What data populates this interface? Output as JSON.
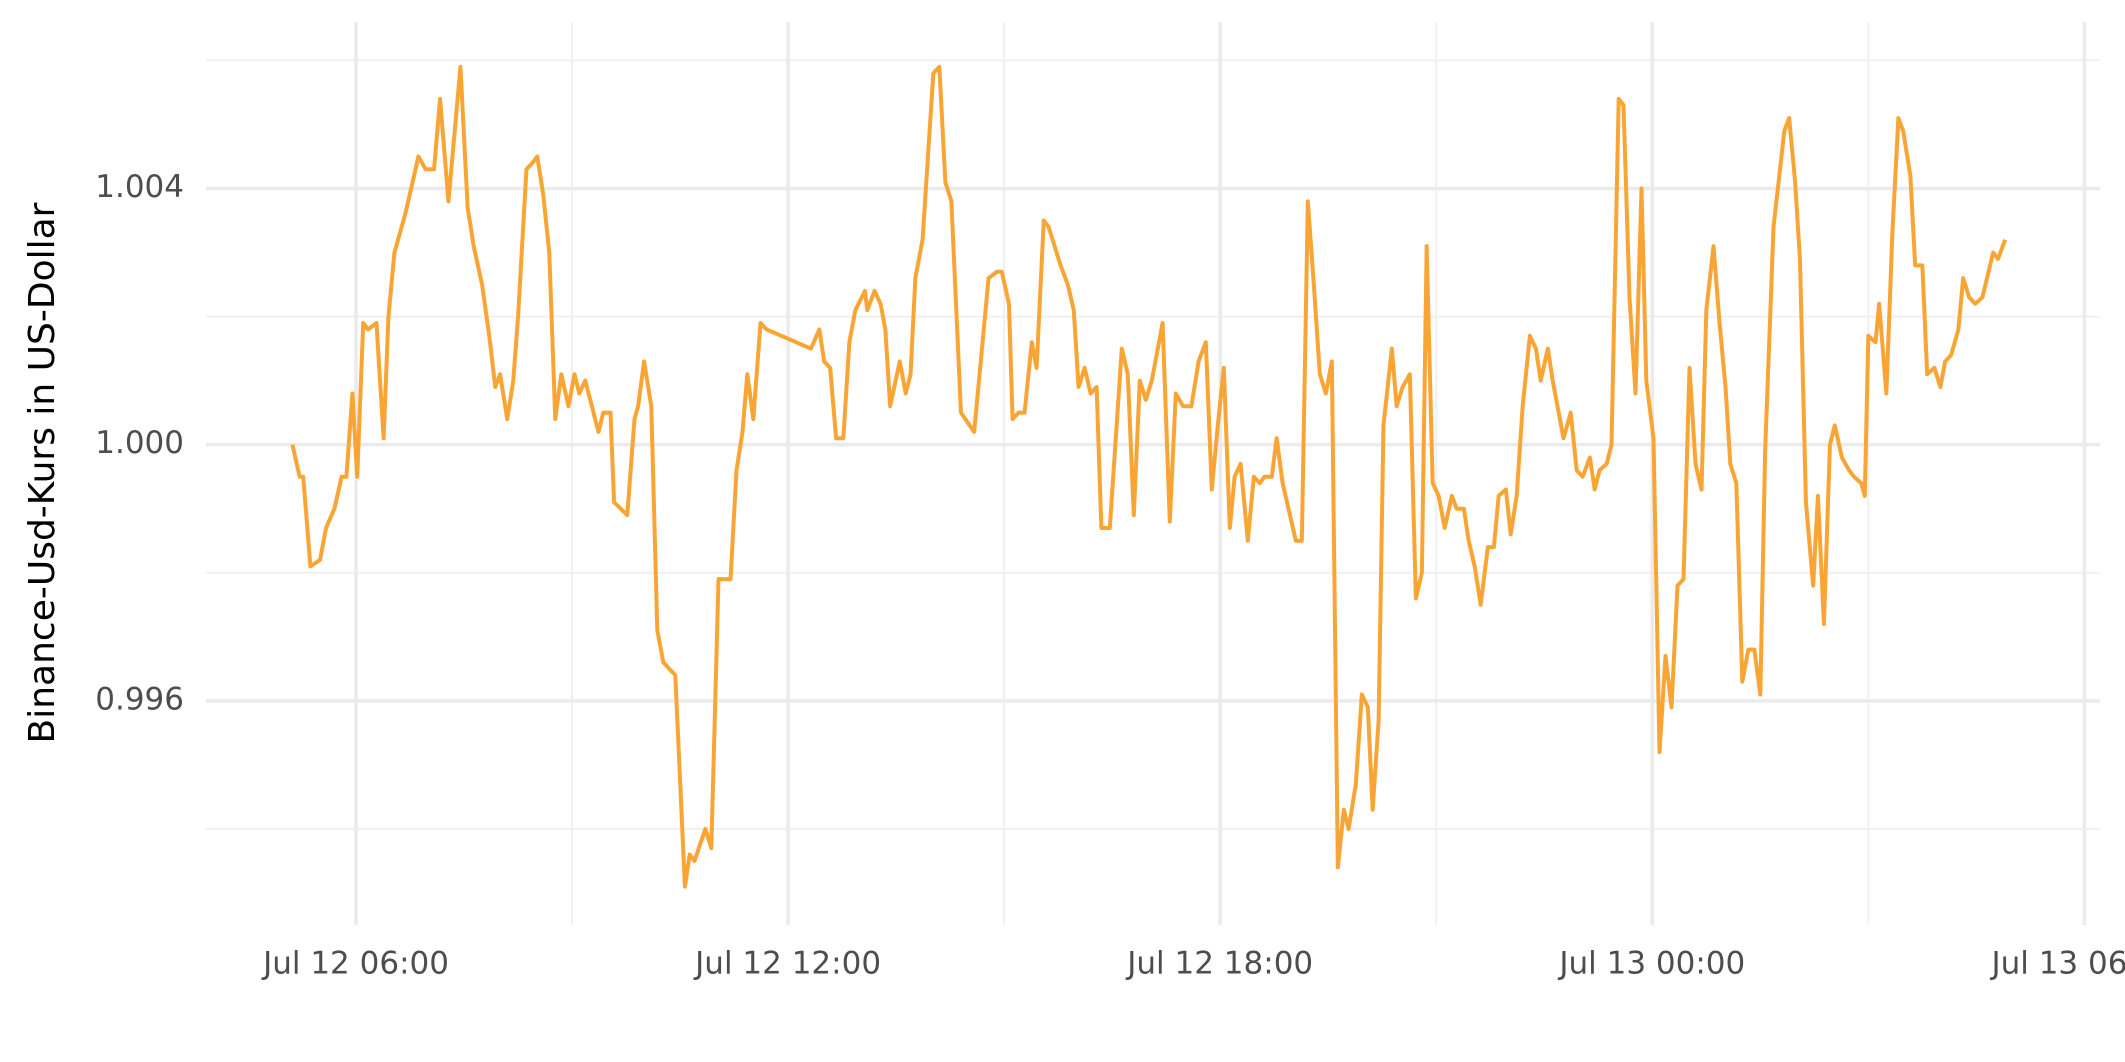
{
  "chart_data": {
    "type": "line",
    "y_label": "Binance-Usd-Kurs in US-Dollar",
    "xlim": [
      "Jul 12 03:55",
      "Jul 13 06:13"
    ],
    "xticks": [
      "Jul 12 06:00",
      "Jul 12 12:00",
      "Jul 12 18:00",
      "Jul 13 00:00",
      "Jul 13 06:00"
    ],
    "x_minor_ticks": [
      "Jul 12 09:00",
      "Jul 12 15:00",
      "Jul 12 21:00",
      "Jul 13 03:00"
    ],
    "ylim": [
      0.9925,
      1.0066
    ],
    "yticks": [
      {
        "value": 0.996,
        "label": "0.996"
      },
      {
        "value": 1.0,
        "label": "1.000"
      },
      {
        "value": 1.004,
        "label": "1.004"
      }
    ],
    "y_minor_ticks": [
      0.994,
      0.998,
      1.002,
      1.006
    ],
    "grid": true,
    "series": [
      {
        "color": "#f9a535",
        "x": [
          "Jul 12 05:07",
          "Jul 12 05:13",
          "Jul 12 05:16",
          "Jul 12 05:22",
          "Jul 12 05:30",
          "Jul 12 05:35",
          "Jul 12 05:42",
          "Jul 12 05:48",
          "Jul 12 05:52",
          "Jul 12 05:57",
          "Jul 12 06:01",
          "Jul 12 06:06",
          "Jul 12 06:10",
          "Jul 12 06:17",
          "Jul 12 06:23",
          "Jul 12 06:27",
          "Jul 12 06:32",
          "Jul 12 06:41",
          "Jul 12 06:52",
          "Jul 12 06:58",
          "Jul 12 07:05",
          "Jul 12 07:10",
          "Jul 12 07:17",
          "Jul 12 07:27",
          "Jul 12 07:33",
          "Jul 12 07:38",
          "Jul 12 07:45",
          "Jul 12 07:51",
          "Jul 12 07:56",
          "Jul 12 08:00",
          "Jul 12 08:06",
          "Jul 12 08:11",
          "Jul 12 08:15",
          "Jul 12 08:22",
          "Jul 12 08:27",
          "Jul 12 08:31",
          "Jul 12 08:36",
          "Jul 12 08:41",
          "Jul 12 08:46",
          "Jul 12 08:51",
          "Jul 12 08:57",
          "Jul 12 09:02",
          "Jul 12 09:06",
          "Jul 12 09:11",
          "Jul 12 09:22",
          "Jul 12 09:26",
          "Jul 12 09:32",
          "Jul 12 09:35",
          "Jul 12 09:46",
          "Jul 12 09:52",
          "Jul 12 09:55",
          "Jul 12 10:00",
          "Jul 12 10:06",
          "Jul 12 10:11",
          "Jul 12 10:16",
          "Jul 12 10:26",
          "Jul 12 10:34",
          "Jul 12 10:38",
          "Jul 12 10:42",
          "Jul 12 10:51",
          "Jul 12 10:56",
          "Jul 12 11:02",
          "Jul 12 11:07",
          "Jul 12 11:12",
          "Jul 12 11:17",
          "Jul 12 11:22",
          "Jul 12 11:26",
          "Jul 12 11:31",
          "Jul 12 11:37",
          "Jul 12 11:42",
          "Jul 12 12:19",
          "Jul 12 12:26",
          "Jul 12 12:30",
          "Jul 12 12:35",
          "Jul 12 12:40",
          "Jul 12 12:46",
          "Jul 12 12:51",
          "Jul 12 12:56",
          "Jul 12 13:04",
          "Jul 12 13:06",
          "Jul 12 13:12",
          "Jul 12 13:17",
          "Jul 12 13:21",
          "Jul 12 13:25",
          "Jul 12 13:33",
          "Jul 12 13:38",
          "Jul 12 13:42",
          "Jul 12 13:46",
          "Jul 12 13:52",
          "Jul 12 14:01",
          "Jul 12 14:06",
          "Jul 12 14:11",
          "Jul 12 14:16",
          "Jul 12 14:24",
          "Jul 12 14:35",
          "Jul 12 14:47",
          "Jul 12 14:54",
          "Jul 12 14:58",
          "Jul 12 15:04",
          "Jul 12 15:07",
          "Jul 12 15:12",
          "Jul 12 15:17",
          "Jul 12 15:23",
          "Jul 12 15:27",
          "Jul 12 15:33",
          "Jul 12 15:37",
          "Jul 12 15:42",
          "Jul 12 15:47",
          "Jul 12 15:53",
          "Jul 12 15:58",
          "Jul 12 16:02",
          "Jul 12 16:07",
          "Jul 12 16:12",
          "Jul 12 16:17",
          "Jul 12 16:21",
          "Jul 12 16:28",
          "Jul 12 16:38",
          "Jul 12 16:43",
          "Jul 12 16:48",
          "Jul 12 16:53",
          "Jul 12 16:58",
          "Jul 12 17:03",
          "Jul 12 17:12",
          "Jul 12 17:18",
          "Jul 12 17:23",
          "Jul 12 17:29",
          "Jul 12 17:36",
          "Jul 12 17:42",
          "Jul 12 17:48",
          "Jul 12 17:53",
          "Jul 12 17:58",
          "Jul 12 18:03",
          "Jul 12 18:08",
          "Jul 12 18:12",
          "Jul 12 18:17",
          "Jul 12 18:23",
          "Jul 12 18:28",
          "Jul 12 18:33",
          "Jul 12 18:37",
          "Jul 12 18:43",
          "Jul 12 18:47",
          "Jul 12 18:52",
          "Jul 12 19:03",
          "Jul 12 19:08",
          "Jul 12 19:13",
          "Jul 12 19:18",
          "Jul 12 19:23",
          "Jul 12 19:28",
          "Jul 12 19:33",
          "Jul 12 19:38",
          "Jul 12 19:43",
          "Jul 12 19:47",
          "Jul 12 19:53",
          "Jul 12 19:58",
          "Jul 12 20:03",
          "Jul 12 20:07",
          "Jul 12 20:12",
          "Jul 12 20:16",
          "Jul 12 20:23",
          "Jul 12 20:27",
          "Jul 12 20:32",
          "Jul 12 20:38",
          "Jul 12 20:43",
          "Jul 12 20:48",
          "Jul 12 20:52",
          "Jul 12 20:57",
          "Jul 12 21:02",
          "Jul 12 21:07",
          "Jul 12 21:13",
          "Jul 12 21:17",
          "Jul 12 21:23",
          "Jul 12 21:27",
          "Jul 12 21:32",
          "Jul 12 21:37",
          "Jul 12 21:43",
          "Jul 12 21:48",
          "Jul 12 21:52",
          "Jul 12 21:58",
          "Jul 12 22:02",
          "Jul 12 22:07",
          "Jul 12 22:12",
          "Jul 12 22:18",
          "Jul 12 22:23",
          "Jul 12 22:27",
          "Jul 12 22:33",
          "Jul 12 22:37",
          "Jul 12 22:42",
          "Jul 12 22:46",
          "Jul 12 22:52",
          "Jul 12 22:57",
          "Jul 12 23:02",
          "Jul 12 23:08",
          "Jul 12 23:12",
          "Jul 12 23:16",
          "Jul 12 23:22",
          "Jul 12 23:26",
          "Jul 12 23:32",
          "Jul 12 23:36",
          "Jul 12 23:41",
          "Jul 12 23:46",
          "Jul 12 23:51",
          "Jul 12 23:55",
          "Jul 13 00:01",
          "Jul 13 00:06",
          "Jul 13 00:11",
          "Jul 13 00:16",
          "Jul 13 00:21",
          "Jul 13 00:26",
          "Jul 13 00:31",
          "Jul 13 00:36",
          "Jul 13 00:41",
          "Jul 13 00:45",
          "Jul 13 00:51",
          "Jul 13 00:56",
          "Jul 13 01:01",
          "Jul 13 01:05",
          "Jul 13 01:10",
          "Jul 13 01:15",
          "Jul 13 01:20",
          "Jul 13 01:25",
          "Jul 13 01:30",
          "Jul 13 01:34",
          "Jul 13 01:41",
          "Jul 13 01:50",
          "Jul 13 01:54",
          "Jul 13 01:59",
          "Jul 13 02:03",
          "Jul 13 02:08",
          "Jul 13 02:14",
          "Jul 13 02:18",
          "Jul 13 02:23",
          "Jul 13 02:28",
          "Jul 13 02:32",
          "Jul 13 02:38",
          "Jul 13 02:44",
          "Jul 13 02:48",
          "Jul 13 02:54",
          "Jul 13 02:57",
          "Jul 13 03:00",
          "Jul 13 03:06",
          "Jul 13 03:09",
          "Jul 13 03:15",
          "Jul 13 03:20",
          "Jul 13 03:25",
          "Jul 13 03:29",
          "Jul 13 03:35",
          "Jul 13 03:39",
          "Jul 13 03:45",
          "Jul 13 03:49",
          "Jul 13 03:55",
          "Jul 13 04:00",
          "Jul 13 04:04",
          "Jul 13 04:09",
          "Jul 13 04:15",
          "Jul 13 04:19",
          "Jul 13 04:24",
          "Jul 13 04:29",
          "Jul 13 04:35",
          "Jul 13 04:44",
          "Jul 13 04:48",
          "Jul 13 04:54"
        ],
        "values": [
          1.0,
          0.9995,
          0.9995,
          0.9981,
          0.9982,
          0.9987,
          0.999,
          0.9995,
          0.9995,
          1.0008,
          0.9995,
          1.0019,
          1.0018,
          1.0019,
          1.0001,
          1.002,
          1.003,
          1.0036,
          1.0045,
          1.0043,
          1.0043,
          1.0054,
          1.0038,
          1.0059,
          1.0037,
          1.0031,
          1.0025,
          1.0017,
          1.0009,
          1.0011,
          1.0004,
          1.001,
          1.002,
          1.0043,
          1.0044,
          1.0045,
          1.0039,
          1.003,
          1.0004,
          1.0011,
          1.0006,
          1.0011,
          1.0008,
          1.001,
          1.0002,
          1.0005,
          1.0005,
          0.9991,
          0.9989,
          1.0004,
          1.0006,
          1.0013,
          1.0006,
          0.9971,
          0.9966,
          0.9964,
          0.9931,
          0.9936,
          0.9935,
          0.994,
          0.9937,
          0.9979,
          0.9979,
          0.9979,
          0.9996,
          1.0002,
          1.0011,
          1.0004,
          1.0019,
          1.0018,
          1.0015,
          1.0018,
          1.0013,
          1.0012,
          1.0001,
          1.0001,
          1.0016,
          1.0021,
          1.0024,
          1.0021,
          1.0024,
          1.0022,
          1.0018,
          1.0006,
          1.0013,
          1.0008,
          1.0011,
          1.0026,
          1.0032,
          1.0058,
          1.0059,
          1.0041,
          1.0038,
          1.0005,
          1.0002,
          1.0026,
          1.0027,
          1.0027,
          1.0022,
          1.0004,
          1.0005,
          1.0005,
          1.0016,
          1.0012,
          1.0035,
          1.0034,
          1.0031,
          1.0028,
          1.0025,
          1.0021,
          1.0009,
          1.0012,
          1.0008,
          1.0009,
          0.9987,
          0.9987,
          1.0015,
          1.0011,
          0.9989,
          1.001,
          1.0007,
          1.001,
          1.0019,
          0.9988,
          1.0008,
          1.0006,
          1.0006,
          1.0013,
          1.0016,
          0.9993,
          1.0003,
          1.0012,
          0.9987,
          0.9995,
          0.9997,
          0.9985,
          0.9995,
          0.9994,
          0.9995,
          0.9995,
          1.0001,
          0.9994,
          0.9985,
          0.9985,
          1.0038,
          1.0025,
          1.0011,
          1.0008,
          1.0013,
          0.9934,
          0.9943,
          0.994,
          0.9947,
          0.9961,
          0.9959,
          0.9943,
          0.9957,
          1.0003,
          1.0015,
          1.0006,
          1.0009,
          1.0011,
          0.9976,
          0.998,
          1.0031,
          0.9994,
          0.9992,
          0.9987,
          0.9992,
          0.999,
          0.999,
          0.9985,
          0.9981,
          0.9975,
          0.9984,
          0.9984,
          0.9992,
          0.9993,
          0.9986,
          0.9992,
          1.0006,
          1.0017,
          1.0015,
          1.001,
          1.0015,
          1.001,
          1.0005,
          1.0001,
          1.0005,
          0.9996,
          0.9995,
          0.9998,
          0.9993,
          0.9996,
          0.9997,
          1.0,
          1.0054,
          1.0053,
          1.0023,
          1.0008,
          1.004,
          1.001,
          1.0001,
          0.9952,
          0.9967,
          0.9959,
          0.9978,
          0.9979,
          1.0012,
          0.9997,
          0.9993,
          1.0021,
          1.0031,
          1.0019,
          1.0009,
          0.9997,
          0.9994,
          0.9963,
          0.9968,
          0.9968,
          0.9961,
          0.9999,
          1.0034,
          1.0049,
          1.0051,
          1.0041,
          1.0029,
          0.9991,
          0.9978,
          0.9992,
          0.9972,
          1.0,
          1.0003,
          0.9998,
          0.9996,
          0.9995,
          0.9994,
          0.9992,
          1.0017,
          1.0016,
          1.0022,
          1.0008,
          1.0033,
          1.0051,
          1.0049,
          1.0042,
          1.0028,
          1.0028,
          1.0011,
          1.0012,
          1.0009,
          1.0013,
          1.0014,
          1.0018,
          1.0026,
          1.0023,
          1.0022,
          1.0023,
          1.003,
          1.0029,
          1.0032
        ]
      }
    ]
  }
}
